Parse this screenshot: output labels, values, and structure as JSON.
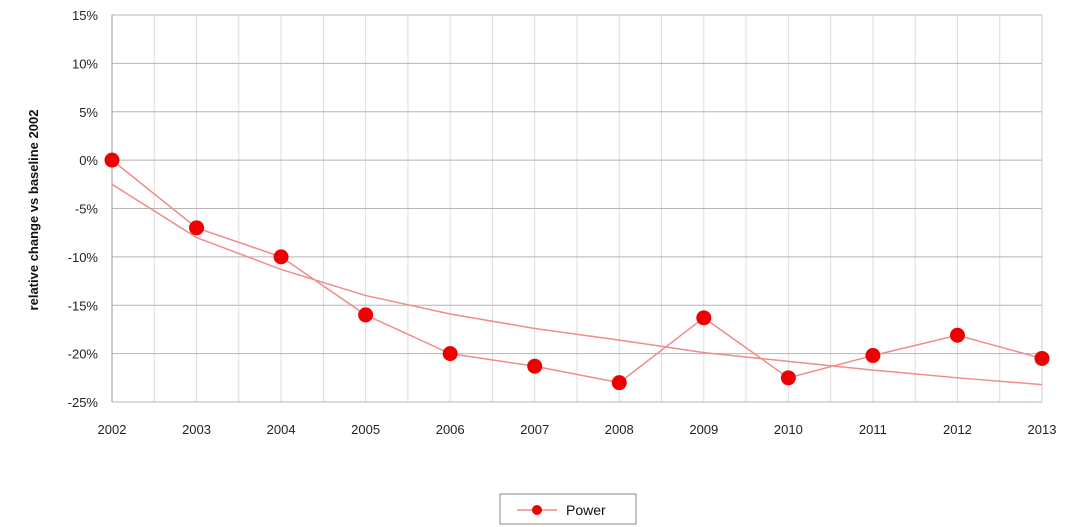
{
  "chart_data": {
    "type": "line",
    "title": "",
    "xlabel": "",
    "ylabel": "relative change vs baseline 2002",
    "categories": [
      "2002",
      "2003",
      "2004",
      "2005",
      "2006",
      "2007",
      "2008",
      "2009",
      "2010",
      "2011",
      "2012",
      "2013"
    ],
    "y_tick_labels": [
      "15%",
      "10%",
      "5%",
      "0%",
      "-5%",
      "-10%",
      "-15%",
      "-20%",
      "-25%"
    ],
    "y_ticks": [
      15,
      10,
      5,
      0,
      -5,
      -10,
      -15,
      -20,
      -25
    ],
    "ylim": [
      -25,
      15
    ],
    "grid": true,
    "legend_position": "bottom",
    "series": [
      {
        "name": "Power",
        "values": [
          0,
          -7,
          -10,
          -16,
          -20,
          -21.3,
          -23,
          -16.3,
          -22.5,
          -20.2,
          -18.1,
          -20.5
        ],
        "color": "#ee0000",
        "line_color": "#f28b8b"
      }
    ],
    "trendline": {
      "type": "logarithmic",
      "color": "#f28b8b",
      "values": [
        -2.5,
        -8,
        -11.3,
        -14,
        -15.9,
        -17.4,
        -18.6,
        -19.9,
        -20.8,
        -21.7,
        -22.5,
        -23.2
      ]
    }
  }
}
